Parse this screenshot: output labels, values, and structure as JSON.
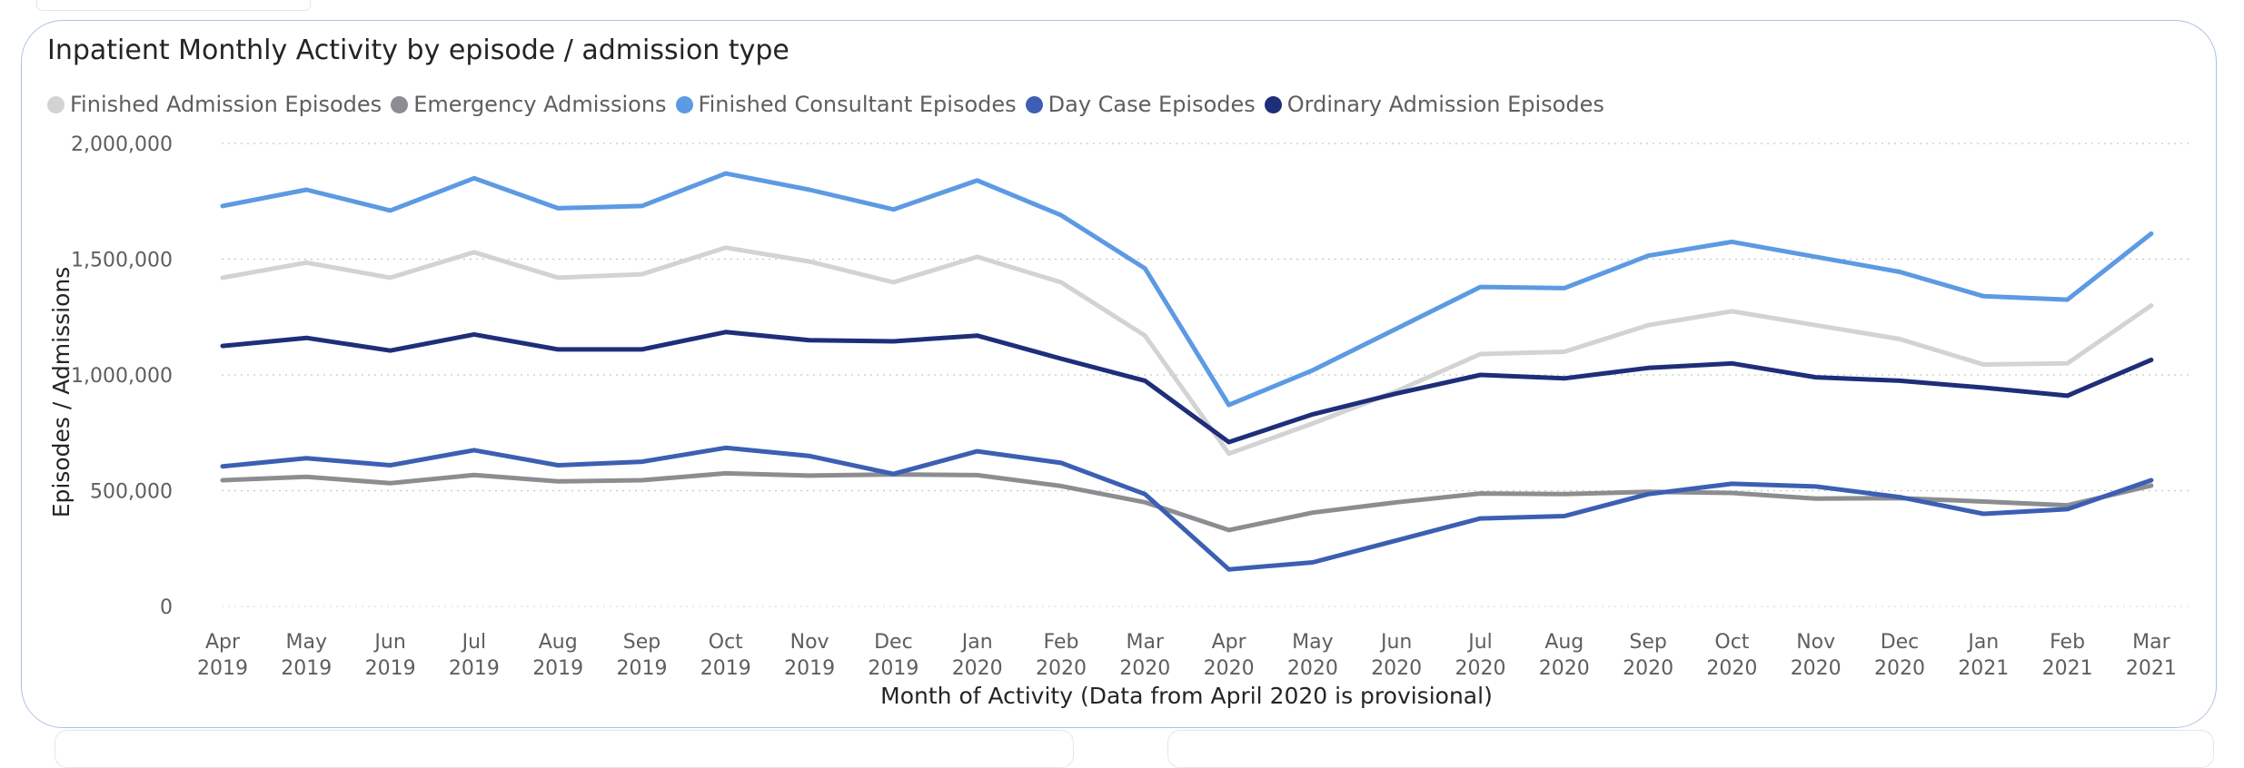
{
  "chart_data": {
    "type": "line",
    "title": "Inpatient Monthly Activity by episode / admission type",
    "xlabel": "Month of Activity (Data from April 2020 is provisional)",
    "ylabel": "Episodes / Admissions",
    "ylim": [
      0,
      2000000
    ],
    "yticks": [
      {
        "value": 0,
        "label": "0"
      },
      {
        "value": 500000,
        "label": "500,000"
      },
      {
        "value": 1000000,
        "label": "1,000,000"
      },
      {
        "value": 1500000,
        "label": "1,500,000"
      },
      {
        "value": 2000000,
        "label": "2,000,000"
      }
    ],
    "grid": true,
    "legend_position": "top-left",
    "categories": [
      {
        "month": "Apr",
        "year": "2019"
      },
      {
        "month": "May",
        "year": "2019"
      },
      {
        "month": "Jun",
        "year": "2019"
      },
      {
        "month": "Jul",
        "year": "2019"
      },
      {
        "month": "Aug",
        "year": "2019"
      },
      {
        "month": "Sep",
        "year": "2019"
      },
      {
        "month": "Oct",
        "year": "2019"
      },
      {
        "month": "Nov",
        "year": "2019"
      },
      {
        "month": "Dec",
        "year": "2019"
      },
      {
        "month": "Jan",
        "year": "2020"
      },
      {
        "month": "Feb",
        "year": "2020"
      },
      {
        "month": "Mar",
        "year": "2020"
      },
      {
        "month": "Apr",
        "year": "2020"
      },
      {
        "month": "May",
        "year": "2020"
      },
      {
        "month": "Jun",
        "year": "2020"
      },
      {
        "month": "Jul",
        "year": "2020"
      },
      {
        "month": "Aug",
        "year": "2020"
      },
      {
        "month": "Sep",
        "year": "2020"
      },
      {
        "month": "Oct",
        "year": "2020"
      },
      {
        "month": "Nov",
        "year": "2020"
      },
      {
        "month": "Dec",
        "year": "2020"
      },
      {
        "month": "Jan",
        "year": "2021"
      },
      {
        "month": "Feb",
        "year": "2021"
      },
      {
        "month": "Mar",
        "year": "2021"
      }
    ],
    "series": [
      {
        "name": "Finished Admission Episodes",
        "color": "#d3d3d3",
        "values": [
          1420000,
          1485000,
          1420000,
          1530000,
          1420000,
          1435000,
          1550000,
          1490000,
          1400000,
          1510000,
          1400000,
          1170000,
          660000,
          790000,
          930000,
          1090000,
          1100000,
          1215000,
          1275000,
          1215000,
          1155000,
          1045000,
          1050000,
          1300000
        ]
      },
      {
        "name": "Emergency Admissions",
        "color": "#8c8d91",
        "values": [
          545000,
          560000,
          532000,
          568000,
          540000,
          545000,
          575000,
          565000,
          570000,
          567000,
          520000,
          450000,
          330000,
          405000,
          450000,
          488000,
          485000,
          495000,
          490000,
          466000,
          468000,
          453000,
          437000,
          522000
        ]
      },
      {
        "name": "Finished Consultant Episodes",
        "color": "#5c9ae3",
        "values": [
          1730000,
          1800000,
          1710000,
          1850000,
          1720000,
          1730000,
          1870000,
          1800000,
          1715000,
          1840000,
          1690000,
          1460000,
          870000,
          1020000,
          1200000,
          1380000,
          1375000,
          1515000,
          1575000,
          1510000,
          1445000,
          1340000,
          1325000,
          1610000
        ]
      },
      {
        "name": "Day Case Episodes",
        "color": "#3c5fb3",
        "values": [
          605000,
          640000,
          610000,
          675000,
          610000,
          625000,
          685000,
          650000,
          572000,
          670000,
          620000,
          485000,
          160000,
          190000,
          285000,
          380000,
          390000,
          485000,
          530000,
          518000,
          472000,
          400000,
          420000,
          545000
        ]
      },
      {
        "name": "Ordinary Admission Episodes",
        "color": "#1f2e79",
        "values": [
          1125000,
          1160000,
          1105000,
          1175000,
          1110000,
          1110000,
          1185000,
          1150000,
          1145000,
          1170000,
          1070000,
          975000,
          710000,
          830000,
          920000,
          1000000,
          985000,
          1030000,
          1050000,
          990000,
          975000,
          945000,
          910000,
          1065000
        ]
      }
    ]
  }
}
